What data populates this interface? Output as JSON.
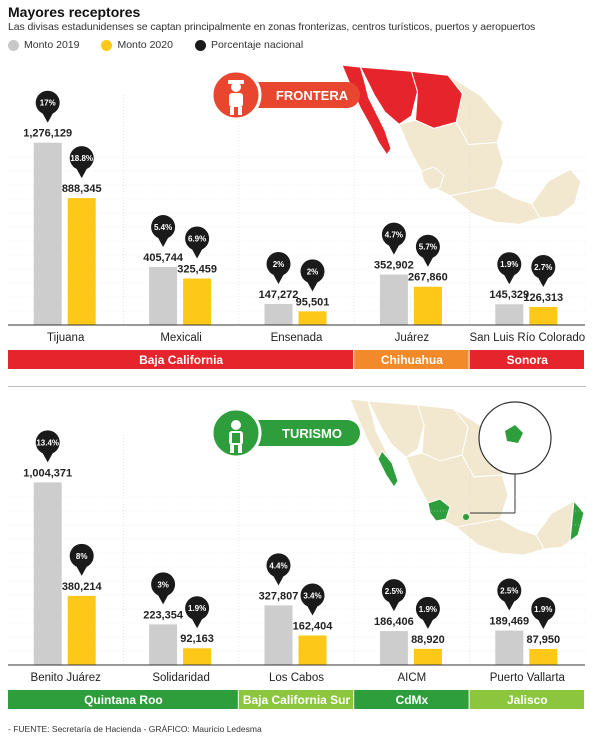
{
  "title": "Mayores receptores",
  "subtitle": "Las divisas estadunidenses se captan principalmente en zonas fronterizas, centros turísticos, puertos y aeropuertos",
  "legend": [
    {
      "label": "Monto 2019",
      "color": "#c8c8c8"
    },
    {
      "label": "Monto 2020",
      "color": "#fdc817"
    },
    {
      "label": "Porcentaje nacional",
      "color": "#1a1a1a"
    }
  ],
  "source": "- FUENTE: Secretaría de Hacienda - GRÁFICO: Mauricio Ledesma",
  "colors": {
    "bar2019": "#cdcdcd",
    "bar2020": "#fdc817",
    "pin": "#1a1a1a",
    "frontera_red": "#e5242b",
    "frontera_badge": "#e8462e",
    "chihuahua_orange": "#f28a2c",
    "turismo_green": "#2e9d3b",
    "bcs_lightgreen": "#8cc63f",
    "map_fill": "#f2e8cf",
    "map_stroke": "#ffffff"
  },
  "chart_data": [
    {
      "type": "bar",
      "badge": "FRONTERA",
      "icon": "officer-icon",
      "categories": [
        "Tijuana",
        "Mexicali",
        "Ensenada",
        "Juárez",
        "San Luis Río Colorado"
      ],
      "series": [
        {
          "name": "Monto 2019",
          "values": [
            1276129,
            405744,
            147272,
            352902,
            145329
          ]
        },
        {
          "name": "Monto 2020",
          "values": [
            888345,
            325459,
            95501,
            267860,
            126313
          ]
        }
      ],
      "value_labels_2019": [
        "1,276,129",
        "405,744",
        "147,272",
        "352,902",
        "145,329"
      ],
      "value_labels_2020": [
        "888,345",
        "325,459",
        "95,501",
        "267,860",
        "126,313"
      ],
      "pct_2019": [
        "17%",
        "5.4%",
        "2%",
        "4.7%",
        "1.9%"
      ],
      "pct_2020": [
        "18.8%",
        "6.9%",
        "2%",
        "5.7%",
        "2.7%"
      ],
      "regions": [
        {
          "label": "Baja California",
          "span": [
            0,
            2
          ],
          "color": "#e5242b"
        },
        {
          "label": "Chihuahua",
          "span": [
            3,
            3
          ],
          "color": "#f28a2c"
        },
        {
          "label": "Sonora",
          "span": [
            4,
            4
          ],
          "color": "#e5242b"
        }
      ],
      "ylim": [
        0,
        1400000
      ]
    },
    {
      "type": "bar",
      "badge": "TURISMO",
      "icon": "tourist-icon",
      "categories": [
        "Benito Juárez",
        "Solidaridad",
        "Los Cabos",
        "AICM",
        "Puerto Vallarta"
      ],
      "series": [
        {
          "name": "Monto 2019",
          "values": [
            1004371,
            223354,
            327807,
            186406,
            189469
          ]
        },
        {
          "name": "Monto 2020",
          "values": [
            380214,
            92163,
            162404,
            88920,
            87950
          ]
        }
      ],
      "value_labels_2019": [
        "1,004,371",
        "223,354",
        "327,807",
        "186,406",
        "189,469"
      ],
      "value_labels_2020": [
        "380,214",
        "92,163",
        "162,404",
        "88,920",
        "87,950"
      ],
      "pct_2019": [
        "13.4%",
        "3%",
        "4.4%",
        "2.5%",
        "2.5%"
      ],
      "pct_2020": [
        "8%",
        "1.9%",
        "3.4%",
        "1.9%",
        "1.9%"
      ],
      "regions": [
        {
          "label": "Quintana Roo",
          "span": [
            0,
            1
          ],
          "color": "#2e9d3b"
        },
        {
          "label": "Baja California Sur",
          "span": [
            2,
            2
          ],
          "color": "#8cc63f"
        },
        {
          "label": "CdMx",
          "span": [
            3,
            3
          ],
          "color": "#2e9d3b"
        },
        {
          "label": "Jalisco",
          "span": [
            4,
            4
          ],
          "color": "#8cc63f"
        }
      ],
      "ylim": [
        0,
        1100000
      ]
    }
  ]
}
